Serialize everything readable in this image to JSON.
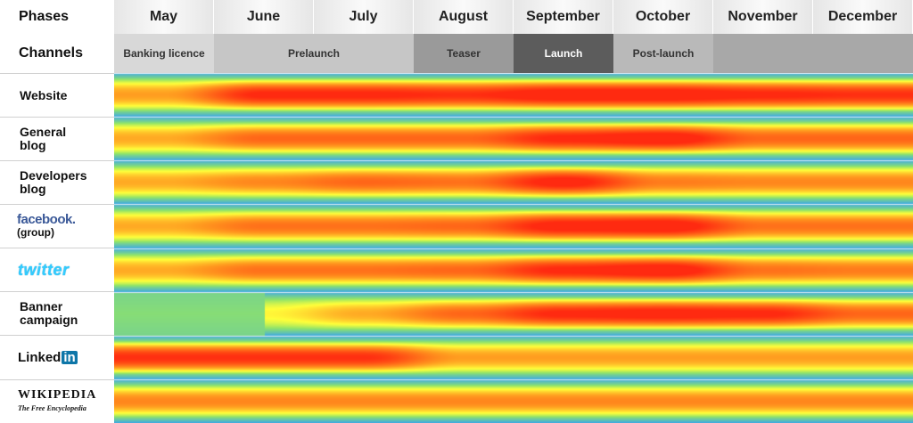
{
  "header": {
    "phases_label": "Phases",
    "channels_label": "Channels"
  },
  "chart_data": {
    "type": "heatmap",
    "months": [
      "May",
      "June",
      "July",
      "August",
      "September",
      "October",
      "November",
      "December"
    ],
    "phases": [
      {
        "label": "Banking licence",
        "start": 0,
        "end": 1,
        "shade": "#d8d8d8"
      },
      {
        "label": "Prelaunch",
        "start": 1,
        "end": 3,
        "shade": "#c6c6c6"
      },
      {
        "label": "Teaser",
        "start": 3,
        "end": 4,
        "shade": "#9a9a9a"
      },
      {
        "label": "Launch",
        "start": 4,
        "end": 5,
        "shade": "#5c5c5c"
      },
      {
        "label": "Post-launch",
        "start": 5,
        "end": 6,
        "shade": "#b9b9b9"
      },
      {
        "label": "",
        "start": 6,
        "end": 8,
        "shade": "#a8a8a8"
      }
    ],
    "channels": [
      {
        "name": "Website",
        "values": [
          0.35,
          0.9,
          0.9,
          0.85,
          1.0,
          1.0,
          0.9,
          0.85
        ]
      },
      {
        "name": "General blog",
        "values": [
          0.3,
          0.6,
          0.6,
          0.6,
          0.9,
          1.0,
          0.6,
          0.6
        ]
      },
      {
        "name": "Developers blog",
        "values": [
          0.3,
          0.45,
          0.6,
          0.55,
          0.95,
          0.5,
          0.45,
          0.45
        ]
      },
      {
        "name": "facebook (group)",
        "values": [
          0.3,
          0.55,
          0.55,
          0.6,
          0.95,
          1.0,
          0.55,
          0.55
        ]
      },
      {
        "name": "twitter",
        "values": [
          0.3,
          0.55,
          0.55,
          0.6,
          0.9,
          1.0,
          0.55,
          0.5
        ]
      },
      {
        "name": "Banner campaign",
        "values": [
          0.0,
          0.0,
          0.3,
          0.6,
          0.9,
          0.95,
          0.9,
          0.6
        ]
      },
      {
        "name": "LinkedIn",
        "values": [
          0.85,
          0.85,
          0.85,
          0.35,
          0.35,
          0.35,
          0.35,
          0.35
        ]
      },
      {
        "name": "Wikipedia",
        "values": [
          0.45,
          0.45,
          0.45,
          0.45,
          0.45,
          0.45,
          0.45,
          0.45
        ]
      }
    ],
    "color_scale": [
      "#3fa9e6",
      "#8fe36a",
      "#ffff3a",
      "#ff9a1f",
      "#ff2a10"
    ],
    "legend": "none",
    "grid": false
  },
  "labels": {
    "website": "Website",
    "general_blog_1": "General",
    "general_blog_2": "blog",
    "dev_blog_1": "Developers",
    "dev_blog_2": "blog",
    "facebook": "facebook.",
    "facebook_sub": "(group)",
    "twitter": "twitter",
    "banner_1": "Banner",
    "banner_2": "campaign",
    "linkedin_a": "Linked",
    "linkedin_b": "in",
    "wikipedia": "WIKIPEDIA",
    "wikipedia_sub": "The Free Encyclopedia"
  }
}
